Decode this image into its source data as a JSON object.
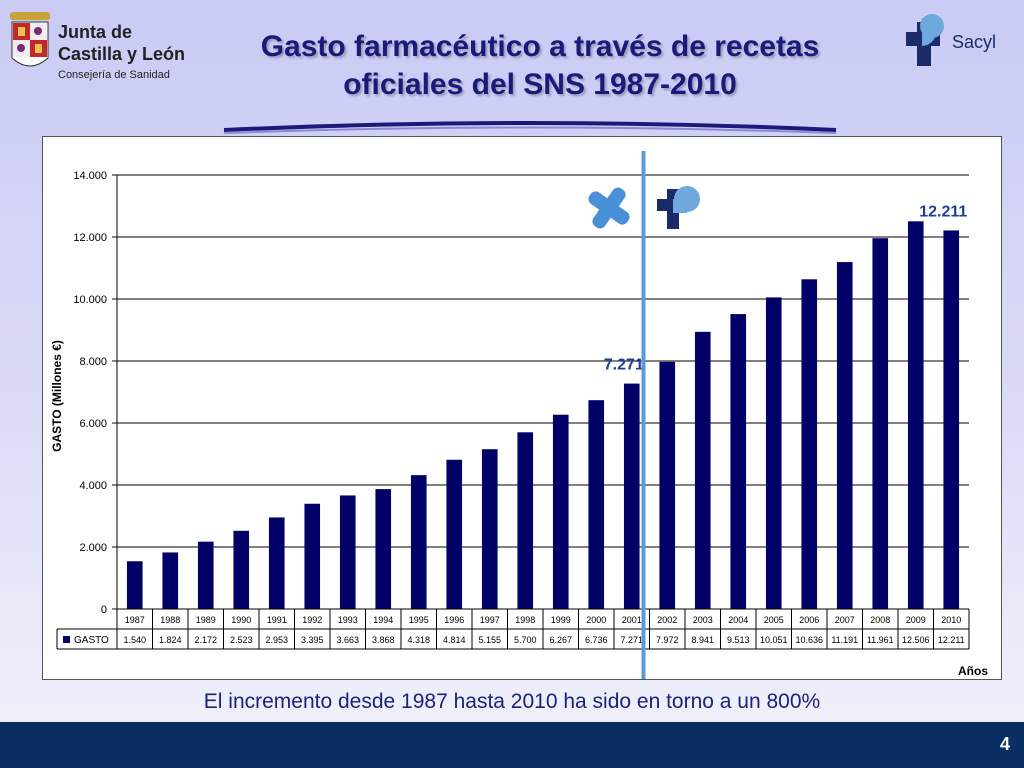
{
  "header": {
    "logo_left": {
      "line1": "Junta de",
      "line2": "Castilla y León",
      "line3": "Consejería de Sanidad"
    },
    "logo_right": {
      "text": "Sacyl"
    },
    "title_line1": "Gasto farmacéutico a través de recetas",
    "title_line2": "oficiales del SNS 1987-2010"
  },
  "caption": "El incremento desde 1987 hasta 2010 ha sido en torno a un 800%",
  "footer": {
    "page_number": "4"
  },
  "colors": {
    "bar": "#000066",
    "divider": "#5b9bd5",
    "label": "#1f3d99",
    "footer": "#0b2e62"
  },
  "chart_data": {
    "type": "bar",
    "ylabel": "GASTO (Millones €)",
    "xlabel": "Años",
    "ylim": [
      0,
      14000
    ],
    "yticks": [
      "0",
      "2.000",
      "4.000",
      "6.000",
      "8.000",
      "10.000",
      "12.000",
      "14.000"
    ],
    "grid": true,
    "categories": [
      "1987",
      "1988",
      "1989",
      "1990",
      "1991",
      "1992",
      "1993",
      "1994",
      "1995",
      "1996",
      "1997",
      "1998",
      "1999",
      "2000",
      "2001",
      "2002",
      "2003",
      "2004",
      "2005",
      "2006",
      "2007",
      "2008",
      "2009",
      "2010"
    ],
    "series": [
      {
        "name": "GASTO",
        "values": [
          1540,
          1824,
          2172,
          2523,
          2953,
          3395,
          3663,
          3868,
          4318,
          4814,
          5155,
          5700,
          6267,
          6736,
          7271,
          7972,
          8941,
          9513,
          10051,
          10636,
          11191,
          11961,
          12506,
          12211
        ],
        "labels": [
          "1.540",
          "1.824",
          "2.172",
          "2.523",
          "2.953",
          "3.395",
          "3.663",
          "3.868",
          "4.318",
          "4.814",
          "5.155",
          "5.700",
          "6.267",
          "6.736",
          "7.271",
          "7.972",
          "8.941",
          "9.513",
          "10.051",
          "10.636",
          "11.191",
          "11.961",
          "12.506",
          "12.211"
        ]
      }
    ],
    "annotations": [
      {
        "text": "7.271",
        "category": "2001"
      },
      {
        "text": "12.211",
        "category": "2010"
      }
    ],
    "divider_after": "2001"
  }
}
